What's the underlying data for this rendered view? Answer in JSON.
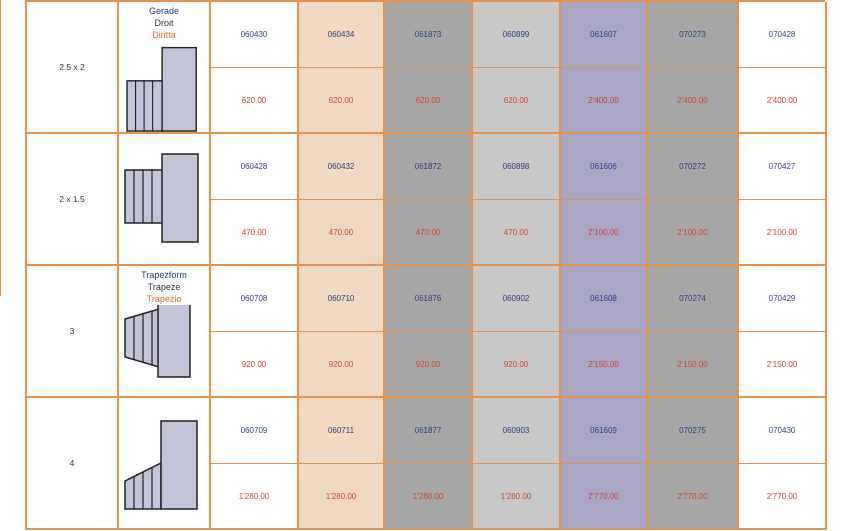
{
  "rows": [
    {
      "size": "2.5 x 2",
      "codes": [
        "060430",
        "060434",
        "061873",
        "060899",
        "061607",
        "070273",
        "070428"
      ],
      "prices": [
        "620.00",
        "620.00",
        "620.00",
        "620.00",
        "2'400.00",
        "2'400.00",
        "2'400.00"
      ]
    },
    {
      "size": "2 x 1.5",
      "codes": [
        "060428",
        "060432",
        "061872",
        "060898",
        "061606",
        "070272",
        "070427"
      ],
      "prices": [
        "470.00",
        "470.00",
        "470.00",
        "470.00",
        "2'100.00",
        "2'100.00",
        "2'100.00"
      ]
    },
    {
      "size": "3",
      "codes": [
        "060708",
        "060710",
        "061876",
        "060902",
        "061608",
        "070274",
        "070429"
      ],
      "prices": [
        "920.00",
        "920.00",
        "920.00",
        "920.00",
        "2'150.00",
        "2'150.00",
        "2'150.00"
      ]
    },
    {
      "size": "4",
      "codes": [
        "060709",
        "060711",
        "061877",
        "060903",
        "061609",
        "070275",
        "070430"
      ],
      "prices": [
        "1'280.00",
        "1'280.00",
        "1'280.00",
        "1'280.00",
        "2'770.00",
        "2'770.00",
        "2'770.00"
      ]
    }
  ],
  "shape_labels": {
    "straight": {
      "de": "Gerade",
      "fr": "Droit",
      "it": "Diritta"
    },
    "trapeze": {
      "de": "Trapezform",
      "fr": "Trapeze",
      "it": "Trapezio"
    }
  },
  "colors": {
    "border": "#e8914a",
    "code_text": "#2b3f87",
    "price_text": "#d8412e",
    "col_peach": "#efd9c1",
    "col_dark_grey": "#a6a6a6",
    "col_light_grey": "#c8c8c8",
    "col_purple": "#a8a5c5"
  }
}
